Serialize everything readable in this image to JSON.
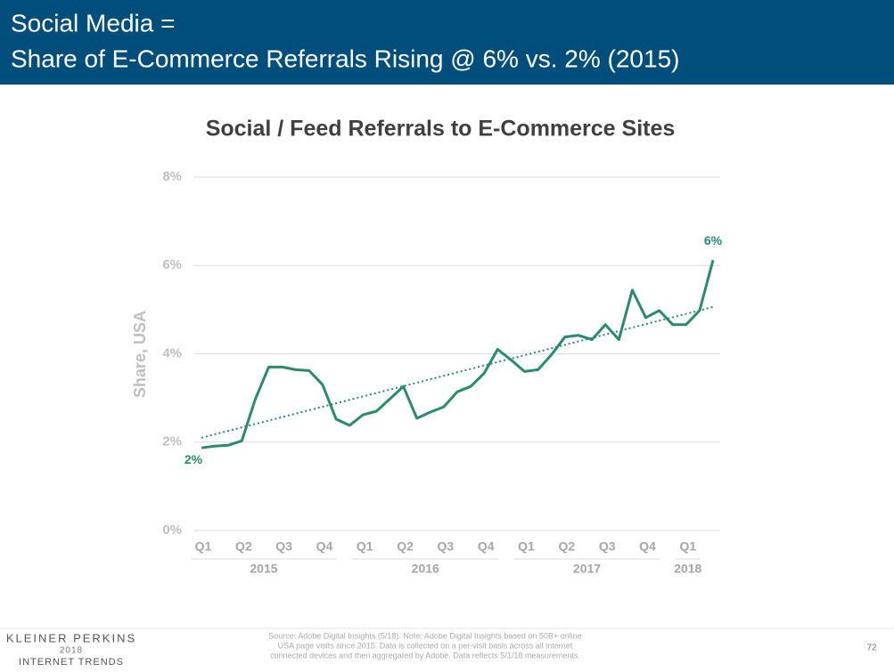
{
  "header": {
    "title_lines": [
      "Social Media =",
      "Share of E-Commerce Referrals Rising @ 6% vs. 2% (2015)"
    ]
  },
  "chart_data": {
    "type": "line",
    "title": "Social / Feed Referrals to E-Commerce Sites",
    "y_label": "Share, USA",
    "series": [
      {
        "name": "Social / Feed Referrals",
        "color": "#2a8a6c",
        "values": [
          1.87,
          1.91,
          1.93,
          2.03,
          2.97,
          3.7,
          3.7,
          3.64,
          3.62,
          3.3,
          2.52,
          2.38,
          2.62,
          2.7,
          2.98,
          3.26,
          2.54,
          2.68,
          2.8,
          3.14,
          3.26,
          3.56,
          4.1,
          3.86,
          3.6,
          3.64,
          3.98,
          4.38,
          4.42,
          4.32,
          4.66,
          4.32,
          5.44,
          4.82,
          4.98,
          4.66,
          4.66,
          4.98,
          6.12
        ],
        "value_labels": [
          "2%",
          null,
          null,
          null,
          null,
          null,
          null,
          null,
          null,
          null,
          null,
          null,
          null,
          null,
          null,
          null,
          null,
          null,
          null,
          null,
          null,
          null,
          null,
          null,
          null,
          null,
          null,
          null,
          null,
          null,
          null,
          null,
          null,
          null,
          null,
          null,
          null,
          null,
          "6%"
        ]
      }
    ],
    "trend": {
      "values": [
        2.1,
        5.06
      ],
      "color": "#2a8a6c"
    },
    "quarters": [
      "Q1",
      "Q2",
      "Q3",
      "Q4",
      "Q1",
      "Q2",
      "Q3",
      "Q4",
      "Q1",
      "Q2",
      "Q3",
      "Q4",
      "Q1"
    ],
    "years": [
      {
        "label": "2015",
        "quarters": 4
      },
      {
        "label": "2016",
        "quarters": 4
      },
      {
        "label": "2017",
        "quarters": 4
      },
      {
        "label": "2018",
        "quarters": 1
      }
    ],
    "ylim": [
      0,
      8
    ],
    "yticks": [
      {
        "value": 0,
        "label": "0%"
      },
      {
        "value": 2,
        "label": "2%"
      },
      {
        "value": 4,
        "label": "4%"
      },
      {
        "value": 6,
        "label": "6%"
      },
      {
        "value": 8,
        "label": "8%"
      }
    ],
    "grid": true
  },
  "footer": {
    "brand": [
      "KLEINER PERKINS",
      "2018",
      "INTERNET TRENDS"
    ],
    "source": [
      "Source: Adobe Digital Insights (5/18). Note: Adobe Digital Insights based on 50B+ online",
      "USA page visits since 2015. Data is collected on a per-visit basis across all internet",
      "connected devices and then aggregated by Adobe. Data reflects 5/1/18 measurements."
    ],
    "page": "72"
  }
}
